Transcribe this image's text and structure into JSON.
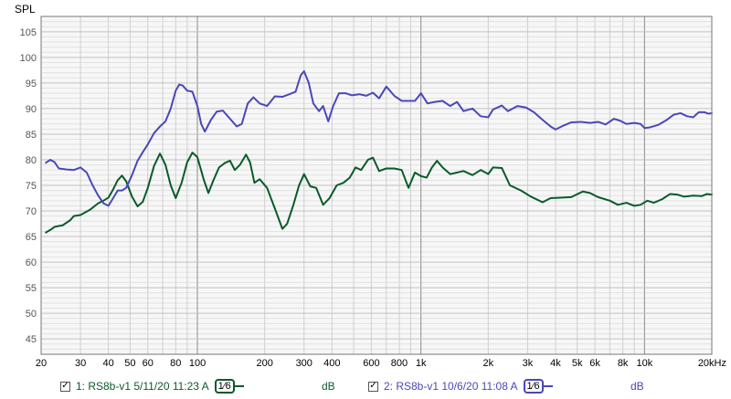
{
  "chart_data": {
    "type": "line",
    "title": "",
    "ylabel": "SPL",
    "xlabel": "",
    "x_scale": "log",
    "xlim": [
      20,
      20000
    ],
    "ylim": [
      42,
      108
    ],
    "y_ticks": [
      45,
      50,
      55,
      60,
      65,
      70,
      75,
      80,
      85,
      90,
      95,
      100,
      105
    ],
    "x_ticks": [
      {
        "value": 20,
        "label": "20"
      },
      {
        "value": 30,
        "label": "30"
      },
      {
        "value": 40,
        "label": "40"
      },
      {
        "value": 50,
        "label": "50"
      },
      {
        "value": 60,
        "label": "60"
      },
      {
        "value": 80,
        "label": "80"
      },
      {
        "value": 100,
        "label": "100"
      },
      {
        "value": 200,
        "label": "200"
      },
      {
        "value": 300,
        "label": "300"
      },
      {
        "value": 400,
        "label": "400"
      },
      {
        "value": 600,
        "label": "600"
      },
      {
        "value": 800,
        "label": "800"
      },
      {
        "value": 1000,
        "label": "1k"
      },
      {
        "value": 2000,
        "label": "2k"
      },
      {
        "value": 3000,
        "label": "3k"
      },
      {
        "value": 4000,
        "label": "4k"
      },
      {
        "value": 5000,
        "label": "5k"
      },
      {
        "value": 6000,
        "label": "6k"
      },
      {
        "value": 8000,
        "label": "8k"
      },
      {
        "value": 10000,
        "label": "10k"
      },
      {
        "value": 20000,
        "label": "20kHz"
      }
    ],
    "grid": true,
    "series": [
      {
        "name": "1: RS8b-v1 5/11/20 11:23 A",
        "color": "#0b5a2a",
        "points": [
          [
            21,
            65.8
          ],
          [
            22,
            66.3
          ],
          [
            23,
            66.9
          ],
          [
            25,
            67.2
          ],
          [
            27,
            68.2
          ],
          [
            28,
            69.0
          ],
          [
            30,
            69.2
          ],
          [
            33,
            70.2
          ],
          [
            36,
            71.5
          ],
          [
            38,
            72.0
          ],
          [
            40,
            72.6
          ],
          [
            42,
            74.2
          ],
          [
            44,
            76.0
          ],
          [
            46,
            76.9
          ],
          [
            48,
            75.8
          ],
          [
            51,
            72.8
          ],
          [
            54,
            70.9
          ],
          [
            57,
            71.8
          ],
          [
            60,
            74.5
          ],
          [
            64,
            78.8
          ],
          [
            68,
            81.2
          ],
          [
            72,
            79.0
          ],
          [
            76,
            75.0
          ],
          [
            80,
            72.5
          ],
          [
            85,
            75.5
          ],
          [
            90,
            79.5
          ],
          [
            95,
            81.4
          ],
          [
            100,
            80.5
          ],
          [
            107,
            76.0
          ],
          [
            112,
            73.5
          ],
          [
            118,
            76.0
          ],
          [
            125,
            78.5
          ],
          [
            133,
            79.4
          ],
          [
            140,
            79.8
          ],
          [
            147,
            78.0
          ],
          [
            155,
            79.0
          ],
          [
            165,
            81.0
          ],
          [
            172,
            79.5
          ],
          [
            180,
            75.5
          ],
          [
            190,
            76.2
          ],
          [
            205,
            74.5
          ],
          [
            222,
            70.5
          ],
          [
            240,
            66.5
          ],
          [
            252,
            67.5
          ],
          [
            268,
            71.0
          ],
          [
            285,
            75.0
          ],
          [
            300,
            77.2
          ],
          [
            320,
            74.8
          ],
          [
            340,
            74.5
          ],
          [
            365,
            71.2
          ],
          [
            390,
            72.5
          ],
          [
            420,
            75.0
          ],
          [
            450,
            75.5
          ],
          [
            480,
            76.5
          ],
          [
            510,
            78.5
          ],
          [
            540,
            78.0
          ],
          [
            580,
            80.0
          ],
          [
            610,
            80.4
          ],
          [
            650,
            77.8
          ],
          [
            700,
            78.3
          ],
          [
            760,
            78.3
          ],
          [
            820,
            78.0
          ],
          [
            880,
            74.5
          ],
          [
            940,
            77.5
          ],
          [
            1000,
            76.8
          ],
          [
            1060,
            76.5
          ],
          [
            1120,
            78.5
          ],
          [
            1180,
            79.8
          ],
          [
            1250,
            78.5
          ],
          [
            1350,
            77.2
          ],
          [
            1450,
            77.5
          ],
          [
            1550,
            77.8
          ],
          [
            1700,
            77.0
          ],
          [
            1850,
            78.0
          ],
          [
            2000,
            77.2
          ],
          [
            2100,
            78.5
          ],
          [
            2300,
            78.4
          ],
          [
            2500,
            75.0
          ],
          [
            2800,
            74.0
          ],
          [
            3100,
            72.8
          ],
          [
            3500,
            71.7
          ],
          [
            3800,
            72.5
          ],
          [
            4200,
            72.6
          ],
          [
            4700,
            72.7
          ],
          [
            5300,
            73.8
          ],
          [
            5700,
            73.5
          ],
          [
            6200,
            72.7
          ],
          [
            7000,
            72.0
          ],
          [
            7600,
            71.2
          ],
          [
            8300,
            71.6
          ],
          [
            9000,
            71.0
          ],
          [
            9600,
            71.2
          ],
          [
            10300,
            72.0
          ],
          [
            11000,
            71.6
          ],
          [
            12000,
            72.3
          ],
          [
            13000,
            73.3
          ],
          [
            14000,
            73.2
          ],
          [
            15000,
            72.8
          ],
          [
            16500,
            73.0
          ],
          [
            18000,
            72.9
          ],
          [
            19000,
            73.3
          ],
          [
            20000,
            73.2
          ]
        ]
      },
      {
        "name": "2: RS8b-v1 10/6/20 11:08 A",
        "color": "#4a48b8",
        "points": [
          [
            21,
            79.4
          ],
          [
            22,
            80.0
          ],
          [
            23,
            79.5
          ],
          [
            24,
            78.3
          ],
          [
            26,
            78.1
          ],
          [
            28,
            78.0
          ],
          [
            30,
            78.5
          ],
          [
            32,
            77.5
          ],
          [
            34,
            75.0
          ],
          [
            36,
            73.0
          ],
          [
            38,
            71.5
          ],
          [
            40,
            71.0
          ],
          [
            42,
            72.5
          ],
          [
            44,
            74.0
          ],
          [
            46,
            74.0
          ],
          [
            48,
            74.5
          ],
          [
            51,
            77.0
          ],
          [
            54,
            79.8
          ],
          [
            57,
            81.5
          ],
          [
            60,
            83.0
          ],
          [
            64,
            85.2
          ],
          [
            68,
            86.5
          ],
          [
            72,
            87.5
          ],
          [
            76,
            90.0
          ],
          [
            80,
            93.5
          ],
          [
            83,
            94.7
          ],
          [
            86,
            94.5
          ],
          [
            90,
            93.5
          ],
          [
            95,
            93.3
          ],
          [
            100,
            90.5
          ],
          [
            104,
            87.0
          ],
          [
            108,
            85.5
          ],
          [
            115,
            87.8
          ],
          [
            122,
            89.4
          ],
          [
            130,
            89.6
          ],
          [
            140,
            88.0
          ],
          [
            150,
            86.5
          ],
          [
            158,
            87.0
          ],
          [
            168,
            91.0
          ],
          [
            178,
            92.2
          ],
          [
            190,
            91.0
          ],
          [
            205,
            90.5
          ],
          [
            222,
            92.4
          ],
          [
            240,
            92.3
          ],
          [
            258,
            92.8
          ],
          [
            275,
            93.3
          ],
          [
            290,
            96.5
          ],
          [
            300,
            97.3
          ],
          [
            315,
            95.0
          ],
          [
            330,
            91.0
          ],
          [
            350,
            89.5
          ],
          [
            365,
            90.5
          ],
          [
            385,
            87.5
          ],
          [
            405,
            90.5
          ],
          [
            430,
            93.0
          ],
          [
            460,
            93.0
          ],
          [
            490,
            92.6
          ],
          [
            530,
            92.8
          ],
          [
            570,
            92.5
          ],
          [
            610,
            93.1
          ],
          [
            650,
            92.0
          ],
          [
            700,
            94.3
          ],
          [
            760,
            92.5
          ],
          [
            820,
            91.5
          ],
          [
            880,
            91.5
          ],
          [
            940,
            91.5
          ],
          [
            1000,
            93.0
          ],
          [
            1070,
            91.0
          ],
          [
            1150,
            91.3
          ],
          [
            1250,
            91.5
          ],
          [
            1350,
            90.5
          ],
          [
            1450,
            91.3
          ],
          [
            1550,
            89.5
          ],
          [
            1700,
            90.0
          ],
          [
            1850,
            88.5
          ],
          [
            2000,
            88.3
          ],
          [
            2100,
            89.8
          ],
          [
            2300,
            90.6
          ],
          [
            2450,
            89.5
          ],
          [
            2700,
            90.5
          ],
          [
            2950,
            90.2
          ],
          [
            3200,
            89.3
          ],
          [
            3500,
            87.8
          ],
          [
            3800,
            86.5
          ],
          [
            4000,
            85.9
          ],
          [
            4300,
            86.6
          ],
          [
            4700,
            87.3
          ],
          [
            5200,
            87.4
          ],
          [
            5700,
            87.2
          ],
          [
            6200,
            87.4
          ],
          [
            6700,
            86.9
          ],
          [
            7300,
            88.0
          ],
          [
            7800,
            87.6
          ],
          [
            8300,
            87.0
          ],
          [
            9000,
            87.2
          ],
          [
            9600,
            87.0
          ],
          [
            10000,
            86.2
          ],
          [
            10500,
            86.3
          ],
          [
            11500,
            86.8
          ],
          [
            12500,
            87.7
          ],
          [
            13500,
            88.8
          ],
          [
            14500,
            89.1
          ],
          [
            15500,
            88.5
          ],
          [
            16500,
            88.3
          ],
          [
            17500,
            89.3
          ],
          [
            18500,
            89.3
          ],
          [
            19300,
            89.0
          ],
          [
            20000,
            89.1
          ]
        ]
      }
    ]
  },
  "legend": {
    "items": [
      {
        "checked": "✓",
        "label": "1: RS8b-v1 5/11/20 11:23 A",
        "smoothing": "1⁄6",
        "unit": "dB",
        "color": "#0b5a2a"
      },
      {
        "checked": "✓",
        "label": "2: RS8b-v1 10/6/20 11:08 A",
        "smoothing": "1⁄6",
        "unit": "dB",
        "color": "#4a48b8"
      }
    ]
  }
}
